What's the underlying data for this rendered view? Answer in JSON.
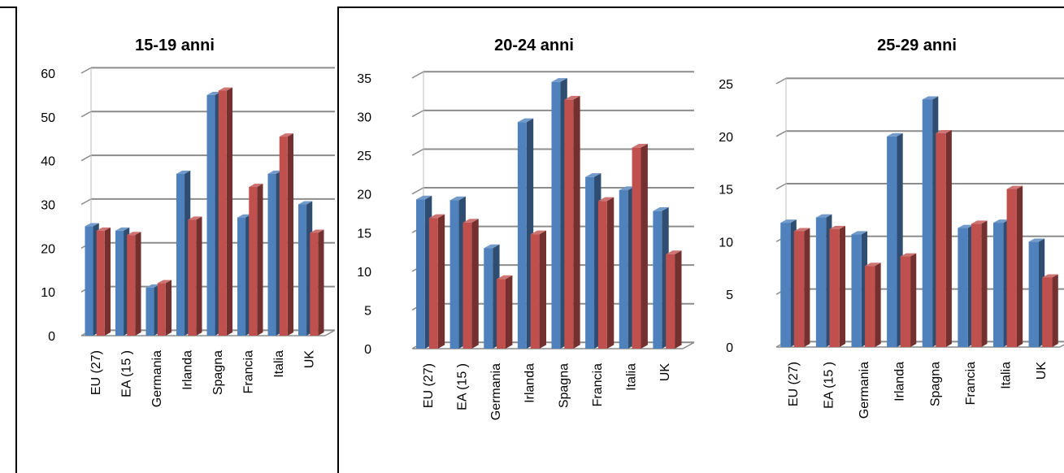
{
  "chart_data": [
    {
      "type": "bar",
      "title": "15-19 anni",
      "categories": [
        "EU (27)",
        "EA (15 )",
        "Germania",
        "Irlanda",
        "Spagna",
        "Francia",
        "Italia",
        "UK"
      ],
      "series": [
        {
          "values": [
            25,
            24,
            11,
            37,
            55,
            27,
            37,
            30
          ],
          "color": "#4F81BD"
        },
        {
          "values": [
            24,
            23,
            12,
            26.5,
            56,
            34,
            45.5,
            23.5
          ],
          "color": "#C0504D"
        }
      ],
      "ylim": [
        0,
        60
      ],
      "yticks": [
        0,
        10,
        20,
        30,
        40,
        50,
        60
      ],
      "grid": true
    },
    {
      "type": "bar",
      "title": "20-24 anni",
      "categories": [
        "EU (27)",
        "EA (15 )",
        "Germania",
        "Irlanda",
        "Spagna",
        "Francia",
        "Italia",
        "UK"
      ],
      "series": [
        {
          "values": [
            19.3,
            19.2,
            13,
            29.3,
            34.5,
            22.2,
            20.5,
            17.8
          ],
          "color": "#4F81BD"
        },
        {
          "values": [
            16.9,
            16.3,
            9,
            14.8,
            32.2,
            19.1,
            26,
            12.2
          ],
          "color": "#C0504D"
        }
      ],
      "ylim": [
        0,
        35
      ],
      "yticks": [
        0,
        5,
        10,
        15,
        20,
        25,
        30,
        35
      ],
      "grid": true
    },
    {
      "type": "bar",
      "title": "25-29 anni",
      "categories": [
        "EU (27)",
        "EA (15 )",
        "Germania",
        "Irlanda",
        "Spagna",
        "Francia",
        "Italia",
        "UK"
      ],
      "series": [
        {
          "values": [
            11.8,
            12.3,
            10.7,
            20,
            23.5,
            11.3,
            11.8,
            10
          ],
          "color": "#4F81BD"
        },
        {
          "values": [
            11,
            11.2,
            7.7,
            8.6,
            20.3,
            11.7,
            15,
            6.6
          ],
          "color": "#C0504D"
        }
      ],
      "ylim": [
        0,
        25
      ],
      "yticks": [
        0,
        5,
        10,
        15,
        20,
        25
      ],
      "grid": true
    }
  ]
}
